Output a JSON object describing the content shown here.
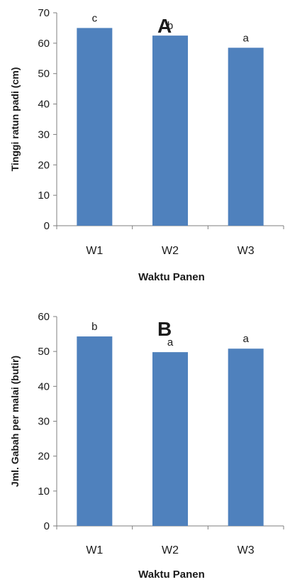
{
  "colors": {
    "bar": "#4f81bd",
    "axis": "#7f7f7f"
  },
  "chart_data": [
    {
      "type": "bar",
      "panel_label": "A",
      "categories": [
        "W1",
        "W2",
        "W3"
      ],
      "values": [
        65,
        62.5,
        58.5
      ],
      "annotations": [
        "c",
        "b",
        "a"
      ],
      "xlabel": "Waktu Panen",
      "ylabel": "Tinggi ratun padi (cm)",
      "ylim": [
        0,
        70
      ],
      "yticks": [
        0,
        10,
        20,
        30,
        40,
        50,
        60,
        70
      ],
      "grid": false,
      "legend": "none"
    },
    {
      "type": "bar",
      "panel_label": "B",
      "categories": [
        "W1",
        "W2",
        "W3"
      ],
      "values": [
        54.3,
        49.8,
        50.8
      ],
      "annotations": [
        "b",
        "a",
        "a"
      ],
      "xlabel": "Waktu Panen",
      "ylabel": "Jml. Gabah per malai (butir)",
      "ylim": [
        0,
        60
      ],
      "yticks": [
        0,
        10,
        20,
        30,
        40,
        50,
        60
      ],
      "grid": false,
      "legend": "none"
    }
  ]
}
